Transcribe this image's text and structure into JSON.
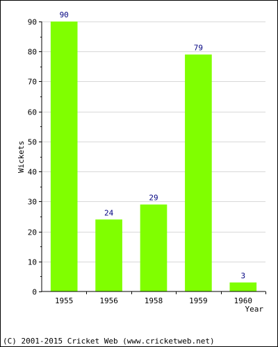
{
  "chart_data": {
    "type": "bar",
    "categories": [
      "1955",
      "1956",
      "1958",
      "1959",
      "1960"
    ],
    "values": [
      90,
      24,
      29,
      79,
      3
    ],
    "xlabel": "Year",
    "ylabel": "Wickets",
    "ylim": [
      0,
      90
    ],
    "yticks": [
      0,
      10,
      20,
      30,
      40,
      50,
      60,
      70,
      80,
      90
    ],
    "grid": true,
    "bar_color": "#80ff00",
    "label_color": "#000080"
  },
  "footer": "(C) 2001-2015 Cricket Web (www.cricketweb.net)"
}
